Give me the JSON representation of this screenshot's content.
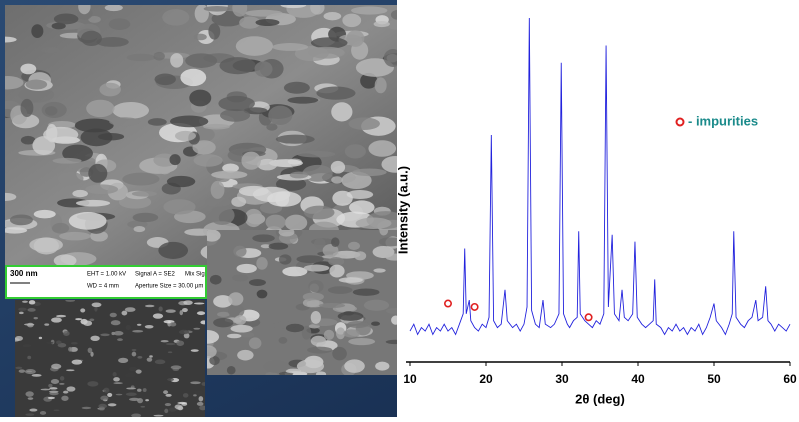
{
  "sem_panel": {
    "scale_bar": "300 nm",
    "info": [
      "EHT = 1.00 kV",
      "Signal A = SE2",
      "Mix Sig",
      "WD =  4 mm",
      "Aperture Size = 30.00 µm"
    ]
  },
  "chart_data": {
    "type": "line",
    "xlabel": "2θ (deg)",
    "ylabel": "Intensity (a.u.)",
    "xlim": [
      10,
      60
    ],
    "xticks": [
      10,
      20,
      30,
      40,
      50,
      60
    ],
    "ylim": [
      0,
      100
    ],
    "legend": "upper right",
    "series": [
      {
        "color": "#2222dd",
        "x": [
          10,
          10.5,
          11,
          11.5,
          12,
          12.5,
          13,
          13.5,
          14,
          14.5,
          15,
          15.5,
          16,
          16.5,
          17,
          17.2,
          17.4,
          17.8,
          18,
          18.5,
          19,
          19.5,
          20,
          20.4,
          20.7,
          21,
          21.5,
          22,
          22.5,
          22.8,
          23.5,
          24,
          24.5,
          25,
          25.4,
          25.7,
          26,
          26.5,
          27,
          27.5,
          27.8,
          28.5,
          29,
          29.6,
          29.9,
          30.2,
          30.7,
          31,
          31.5,
          32,
          32.2,
          32.4,
          33,
          33.5,
          34,
          34.5,
          35,
          35.5,
          35.8,
          36.1,
          36.6,
          36.9,
          37.5,
          37.9,
          38.2,
          38.7,
          39.3,
          39.6,
          39.9,
          40.5,
          41,
          41.5,
          42,
          42.2,
          42.4,
          43,
          43.5,
          44,
          44.5,
          45,
          45.5,
          46,
          46.5,
          47,
          47.5,
          48,
          48.5,
          49,
          49.5,
          50,
          50.3,
          51,
          51.5,
          52,
          52.4,
          52.6,
          52.9,
          53.5,
          54,
          54.5,
          55,
          55.5,
          55.8,
          56.4,
          56.8,
          57.1,
          57.5,
          58,
          58.5,
          59,
          59.5,
          60
        ],
        "values": [
          9,
          11,
          8,
          10,
          9,
          11,
          8,
          10,
          9,
          11,
          9,
          10,
          8,
          11,
          14,
          33,
          14,
          18,
          12,
          10,
          9,
          11,
          10,
          13,
          66,
          12,
          10,
          11,
          21,
          12,
          10,
          11,
          9,
          11,
          16,
          100,
          15,
          11,
          10,
          18,
          11,
          10,
          11,
          14,
          87,
          14,
          11,
          10,
          12,
          13,
          38,
          14,
          12,
          11,
          10,
          12,
          11,
          14,
          92,
          16,
          37,
          14,
          12,
          21,
          13,
          12,
          14,
          35,
          13,
          11,
          10,
          11,
          12,
          24,
          11,
          10,
          8,
          10,
          9,
          11,
          9,
          10,
          8,
          10,
          9,
          11,
          8,
          10,
          13,
          17,
          12,
          10,
          8,
          11,
          14,
          38,
          13,
          11,
          10,
          12,
          13,
          18,
          12,
          13,
          22,
          12,
          11,
          9,
          11,
          10,
          9,
          11
        ]
      },
      {
        "name": "- impurities",
        "color": "#e02020",
        "marker": "circle",
        "x": [
          15,
          18.5,
          33.5
        ],
        "values": [
          17,
          16,
          13
        ]
      }
    ]
  }
}
